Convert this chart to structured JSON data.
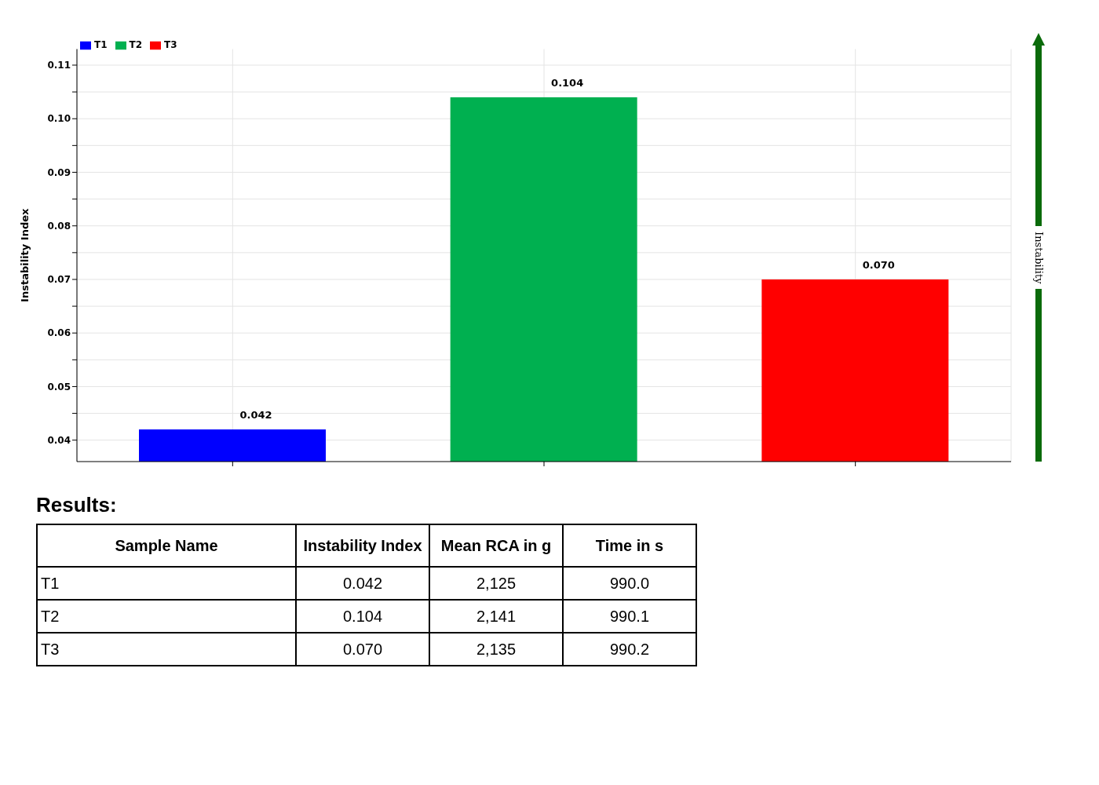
{
  "chart_data": [
    {
      "type": "bar",
      "ylabel": "Instability Index",
      "categories": [
        null,
        null,
        null
      ],
      "series": [
        {
          "name": "T1",
          "color": "#0000ff",
          "values": [
            0.042,
            null,
            null
          ]
        },
        {
          "name": "T2",
          "color": "#00b050",
          "values": [
            null,
            0.104,
            null
          ]
        },
        {
          "name": "T3",
          "color": "#ff0000",
          "values": [
            null,
            null,
            0.07
          ]
        }
      ],
      "ylim": [
        0.036,
        0.113
      ],
      "yticks": [
        0.04,
        {
          "value": 0.045,
          "label": null
        },
        {
          "value": 0.05,
          "label": "0.05"
        },
        {
          "value": 0.055,
          "label": null
        },
        {
          "value": 0.06,
          "label": "0.06"
        },
        {
          "value": 0.065,
          "label": null
        },
        {
          "value": 0.07,
          "label": "0.07"
        },
        {
          "value": 0.075,
          "label": null
        },
        {
          "value": 0.08,
          "label": "0.08"
        },
        {
          "value": 0.085,
          "label": null
        },
        {
          "value": 0.09,
          "label": "0.09"
        },
        {
          "value": 0.095,
          "label": null
        },
        {
          "value": 0.1,
          "label": "0.10"
        },
        {
          "value": 0.105,
          "label": null
        },
        {
          "value": 0.11,
          "label": "0.11"
        }
      ],
      "value_labels": [
        [
          "0.042",
          null,
          null
        ],
        [
          null,
          "0.104",
          null
        ],
        [
          null,
          null,
          "0.070"
        ]
      ],
      "grid": true,
      "legend": "top left",
      "annotations": [
        "Instability"
      ]
    },
    {
      "type": "other",
      "title": "Results:",
      "annotations": [
        "Sample Name",
        "Instability Index",
        "Mean RCA in g",
        "Time in s",
        "T1",
        "0.042",
        "2,125",
        "990.0",
        "T2",
        "0.104",
        "2,141",
        "990.1",
        "T3",
        "0.070",
        "2,135",
        "990.2"
      ]
    }
  ]
}
